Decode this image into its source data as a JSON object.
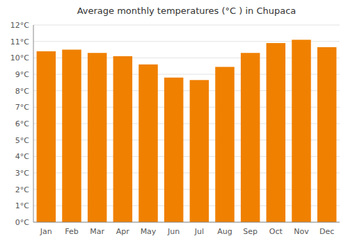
{
  "chart_data": {
    "type": "bar",
    "title": "Average monthly temperatures (°C ) in Chupaca",
    "categories": [
      "Jan",
      "Feb",
      "Mar",
      "Apr",
      "May",
      "Jun",
      "Jul",
      "Aug",
      "Sep",
      "Oct",
      "Nov",
      "Dec"
    ],
    "values": [
      10.4,
      10.5,
      10.3,
      10.1,
      9.6,
      8.8,
      8.65,
      9.45,
      10.3,
      10.9,
      11.1,
      10.65
    ],
    "color": "#F08000",
    "ylim": [
      0,
      12
    ],
    "yticks": [
      {
        "value": 0,
        "label": "0°C"
      },
      {
        "value": 1,
        "label": "1°C"
      },
      {
        "value": 2,
        "label": "2°C"
      },
      {
        "value": 3,
        "label": "3°C"
      },
      {
        "value": 4,
        "label": "4°C"
      },
      {
        "value": 5,
        "label": "5°C"
      },
      {
        "value": 6,
        "label": "6°C"
      },
      {
        "value": 7,
        "label": "7°C"
      },
      {
        "value": 8,
        "label": "8°C"
      },
      {
        "value": 9,
        "label": "9°C"
      },
      {
        "value": 10,
        "label": "10°C"
      },
      {
        "value": 11,
        "label": "11°C"
      },
      {
        "value": 12,
        "label": "12°C"
      }
    ],
    "grid": true
  }
}
